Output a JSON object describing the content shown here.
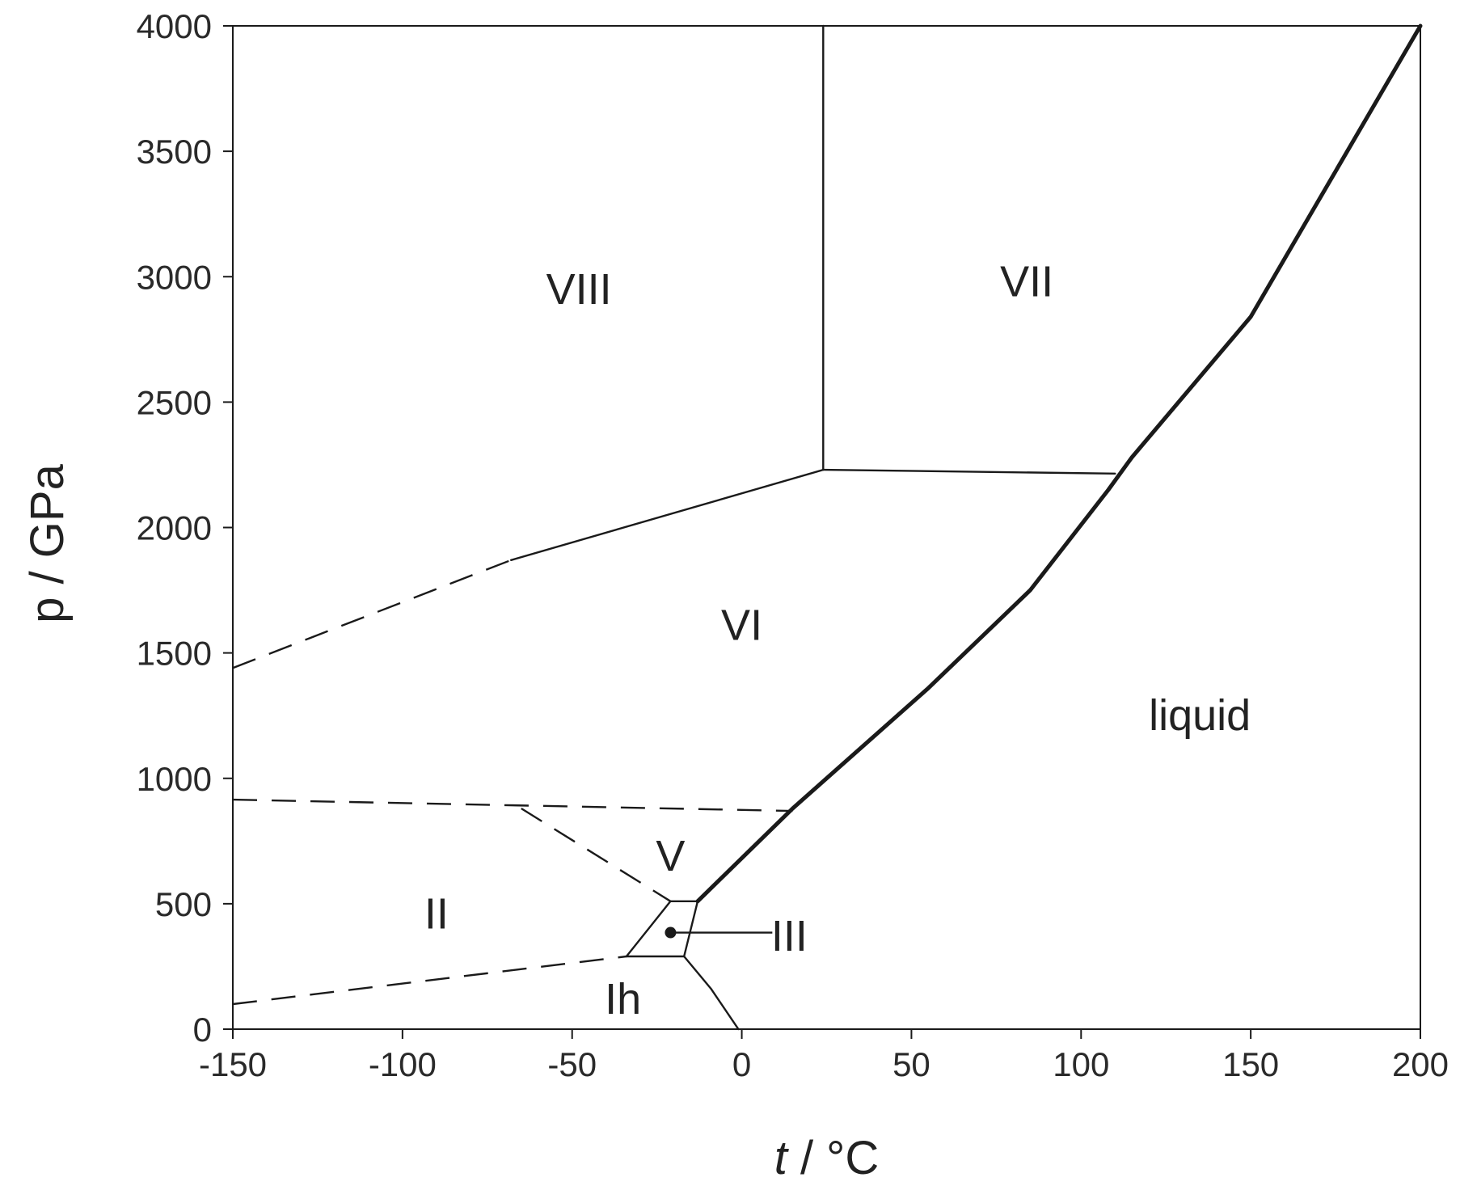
{
  "chart_data": {
    "type": "line",
    "title": "",
    "xlabel_italic": "t",
    "xlabel_rest": " / °C",
    "ylabel": "p / GPa",
    "xlim": [
      -150,
      200
    ],
    "ylim": [
      0,
      4000
    ],
    "x_ticks": [
      -150,
      -100,
      -50,
      0,
      50,
      100,
      150,
      200
    ],
    "y_ticks": [
      0,
      500,
      1000,
      1500,
      2000,
      2500,
      3000,
      3500,
      4000
    ],
    "grid": false,
    "legend": "none",
    "colors": {
      "line": "#1a1a1a",
      "text": "#222222",
      "background": "#ffffff"
    },
    "series": [
      {
        "id": "melting-curve",
        "style": "thick",
        "points": [
          [
            -13,
            510
          ],
          [
            15,
            880
          ],
          [
            55,
            1360
          ],
          [
            85,
            1750
          ],
          [
            108,
            2150
          ],
          [
            115,
            2280
          ],
          [
            150,
            2840
          ],
          [
            200,
            4000
          ]
        ]
      },
      {
        "id": "VI-VII-VIII-boundary",
        "style": "solid",
        "points": [
          [
            -68,
            1870
          ],
          [
            24,
            2230
          ]
        ]
      },
      {
        "id": "VI-VIII-boundary-dashed",
        "style": "dashed",
        "points": [
          [
            -150,
            1440
          ],
          [
            -68,
            1870
          ]
        ]
      },
      {
        "id": "VII-VIII-boundary",
        "style": "solid",
        "points": [
          [
            24,
            2230
          ],
          [
            24,
            4000
          ]
        ]
      },
      {
        "id": "VI-VII-boundary",
        "style": "solid",
        "points": [
          [
            24,
            2230
          ],
          [
            110,
            2215
          ]
        ]
      },
      {
        "id": "II-VI-V-boundary-dashed",
        "style": "dashed",
        "points": [
          [
            -150,
            915
          ],
          [
            15,
            870
          ]
        ]
      },
      {
        "id": "II-V-boundary-dashed",
        "style": "dashed",
        "points": [
          [
            -65,
            880
          ],
          [
            -21,
            510
          ]
        ]
      },
      {
        "id": "V-III-boundary",
        "style": "solid",
        "points": [
          [
            -21,
            510
          ],
          [
            -13,
            510
          ]
        ]
      },
      {
        "id": "III-liquid-boundary",
        "style": "solid",
        "points": [
          [
            -13,
            510
          ],
          [
            -17,
            290
          ]
        ]
      },
      {
        "id": "II-III-boundary",
        "style": "solid",
        "points": [
          [
            -21,
            510
          ],
          [
            -34,
            290
          ]
        ]
      },
      {
        "id": "Ih-III-boundary",
        "style": "solid",
        "points": [
          [
            -34,
            290
          ],
          [
            -17,
            290
          ]
        ]
      },
      {
        "id": "Ih-II-boundary-dashed",
        "style": "dashed",
        "points": [
          [
            -150,
            100
          ],
          [
            -34,
            290
          ]
        ]
      },
      {
        "id": "Ih-liquid-boundary",
        "style": "solid",
        "points": [
          [
            -17,
            290
          ],
          [
            -9,
            160
          ],
          [
            -1,
            0
          ]
        ]
      }
    ],
    "regions": [
      {
        "label": "VIII",
        "x": -48,
        "y": 2950
      },
      {
        "label": "VII",
        "x": 84,
        "y": 2980
      },
      {
        "label": "VI",
        "x": 0,
        "y": 1610
      },
      {
        "label": "liquid",
        "x": 135,
        "y": 1250
      },
      {
        "label": "V",
        "x": -21,
        "y": 690
      },
      {
        "label": "II",
        "x": -90,
        "y": 460
      },
      {
        "label": "Ih",
        "x": -35,
        "y": 120
      },
      {
        "label": "III",
        "x": 14,
        "y": 370
      }
    ],
    "annotations": [
      {
        "text": "III",
        "point": [
          -21,
          385
        ],
        "line_to": [
          9,
          385
        ]
      }
    ]
  }
}
